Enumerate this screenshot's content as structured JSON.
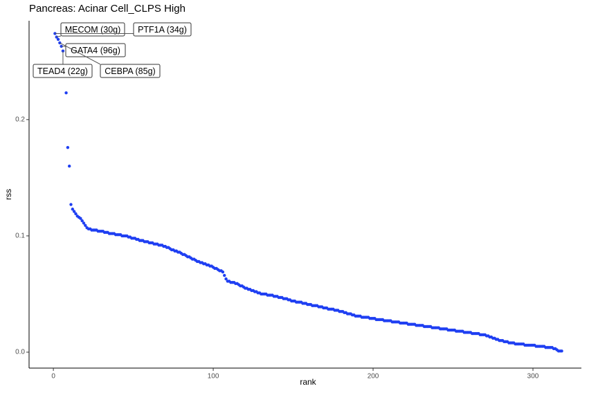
{
  "chart_data": {
    "type": "scatter",
    "title": "Pancreas: Acinar Cell_CLPS High",
    "x_label": "rank",
    "y_label": "rss",
    "color": "#1f3ff2",
    "xlim": [
      -15.2,
      330.3
    ],
    "ylim": [
      -0.0137,
      0.285
    ],
    "xticks": [
      0,
      100,
      200,
      300
    ],
    "yticks": [
      {
        "value": 0,
        "label": "0.0"
      },
      {
        "value": 0.1,
        "label": "0.1"
      },
      {
        "value": 0.2,
        "label": "0.2"
      }
    ],
    "annotations": [
      {
        "text": "MECOM (30g)",
        "rank": 2
      },
      {
        "text": "PTF1A (34g)",
        "rank": 1
      },
      {
        "text": "GATA4 (96g)",
        "rank": 5
      },
      {
        "text": "TEAD4 (22g)",
        "rank": 6
      },
      {
        "text": "CEBPA (85g)",
        "rank": 4
      }
    ],
    "x": [
      1,
      2,
      3,
      4,
      5,
      6,
      7,
      8,
      9,
      10,
      11,
      12,
      13,
      14,
      15,
      16,
      17,
      18,
      19,
      20,
      21,
      22,
      23,
      24,
      25,
      26,
      27,
      28,
      29,
      30,
      31,
      32,
      33,
      34,
      35,
      36,
      37,
      38,
      39,
      40,
      41,
      42,
      43,
      44,
      45,
      46,
      47,
      48,
      49,
      50,
      51,
      52,
      53,
      54,
      55,
      56,
      57,
      58,
      59,
      60,
      61,
      62,
      63,
      64,
      65,
      66,
      67,
      68,
      69,
      70,
      71,
      72,
      73,
      74,
      75,
      76,
      77,
      78,
      79,
      80,
      81,
      82,
      83,
      84,
      85,
      86,
      87,
      88,
      89,
      90,
      91,
      92,
      93,
      94,
      95,
      96,
      97,
      98,
      99,
      100,
      101,
      102,
      103,
      104,
      105,
      106,
      107,
      108,
      109,
      110,
      111,
      112,
      113,
      114,
      115,
      116,
      117,
      118,
      119,
      120,
      121,
      122,
      123,
      124,
      125,
      126,
      127,
      128,
      129,
      130,
      131,
      132,
      133,
      134,
      135,
      136,
      137,
      138,
      139,
      140,
      141,
      142,
      143,
      144,
      145,
      146,
      147,
      148,
      149,
      150,
      151,
      152,
      153,
      154,
      155,
      156,
      157,
      158,
      159,
      160,
      161,
      162,
      163,
      164,
      165,
      166,
      167,
      168,
      169,
      170,
      171,
      172,
      173,
      174,
      175,
      176,
      177,
      178,
      179,
      180,
      181,
      182,
      183,
      184,
      185,
      186,
      187,
      188,
      189,
      190,
      191,
      192,
      193,
      194,
      195,
      196,
      197,
      198,
      199,
      200,
      201,
      202,
      203,
      204,
      205,
      206,
      207,
      208,
      209,
      210,
      211,
      212,
      213,
      214,
      215,
      216,
      217,
      218,
      219,
      220,
      221,
      222,
      223,
      224,
      225,
      226,
      227,
      228,
      229,
      230,
      231,
      232,
      233,
      234,
      235,
      236,
      237,
      238,
      239,
      240,
      241,
      242,
      243,
      244,
      245,
      246,
      247,
      248,
      249,
      250,
      251,
      252,
      253,
      254,
      255,
      256,
      257,
      258,
      259,
      260,
      261,
      262,
      263,
      264,
      265,
      266,
      267,
      268,
      269,
      270,
      271,
      272,
      273,
      274,
      275,
      276,
      277,
      278,
      279,
      280,
      281,
      282,
      283,
      284,
      285,
      286,
      287,
      288,
      289,
      290,
      291,
      292,
      293,
      294,
      295,
      296,
      297,
      298,
      299,
      300,
      301,
      302,
      303,
      304,
      305,
      306,
      307,
      308,
      309,
      310,
      311,
      312,
      313,
      314,
      315,
      316,
      317,
      318
    ],
    "values": [
      0.274,
      0.271,
      0.269,
      0.266,
      0.263,
      0.259,
      0.238,
      0.223,
      0.176,
      0.16,
      0.127,
      0.123,
      0.121,
      0.119,
      0.117,
      0.116,
      0.115,
      0.113,
      0.111,
      0.109,
      0.107,
      0.106,
      0.106,
      0.105,
      0.105,
      0.105,
      0.105,
      0.104,
      0.104,
      0.104,
      0.104,
      0.103,
      0.103,
      0.103,
      0.102,
      0.102,
      0.102,
      0.102,
      0.101,
      0.101,
      0.101,
      0.101,
      0.1,
      0.1,
      0.1,
      0.1,
      0.099,
      0.099,
      0.098,
      0.098,
      0.098,
      0.097,
      0.097,
      0.096,
      0.096,
      0.096,
      0.095,
      0.095,
      0.095,
      0.094,
      0.094,
      0.094,
      0.093,
      0.093,
      0.093,
      0.092,
      0.092,
      0.092,
      0.091,
      0.091,
      0.09,
      0.09,
      0.089,
      0.088,
      0.088,
      0.087,
      0.087,
      0.086,
      0.086,
      0.085,
      0.084,
      0.084,
      0.083,
      0.082,
      0.082,
      0.081,
      0.08,
      0.08,
      0.079,
      0.078,
      0.078,
      0.077,
      0.077,
      0.076,
      0.076,
      0.075,
      0.075,
      0.074,
      0.074,
      0.073,
      0.072,
      0.072,
      0.071,
      0.07,
      0.07,
      0.069,
      0.066,
      0.063,
      0.061,
      0.061,
      0.06,
      0.06,
      0.06,
      0.059,
      0.059,
      0.058,
      0.057,
      0.057,
      0.056,
      0.055,
      0.055,
      0.054,
      0.054,
      0.053,
      0.053,
      0.052,
      0.052,
      0.051,
      0.051,
      0.05,
      0.05,
      0.05,
      0.05,
      0.049,
      0.049,
      0.049,
      0.049,
      0.048,
      0.048,
      0.048,
      0.047,
      0.047,
      0.047,
      0.046,
      0.046,
      0.046,
      0.045,
      0.045,
      0.044,
      0.044,
      0.044,
      0.043,
      0.043,
      0.043,
      0.043,
      0.042,
      0.042,
      0.042,
      0.041,
      0.041,
      0.041,
      0.04,
      0.04,
      0.04,
      0.04,
      0.039,
      0.039,
      0.039,
      0.038,
      0.038,
      0.038,
      0.037,
      0.037,
      0.037,
      0.037,
      0.036,
      0.036,
      0.036,
      0.035,
      0.035,
      0.035,
      0.034,
      0.034,
      0.033,
      0.033,
      0.033,
      0.032,
      0.032,
      0.031,
      0.031,
      0.031,
      0.031,
      0.03,
      0.03,
      0.03,
      0.03,
      0.03,
      0.029,
      0.029,
      0.029,
      0.029,
      0.028,
      0.028,
      0.028,
      0.028,
      0.028,
      0.027,
      0.027,
      0.027,
      0.027,
      0.027,
      0.026,
      0.026,
      0.026,
      0.026,
      0.026,
      0.025,
      0.025,
      0.025,
      0.025,
      0.025,
      0.024,
      0.024,
      0.024,
      0.024,
      0.024,
      0.023,
      0.023,
      0.023,
      0.023,
      0.023,
      0.022,
      0.022,
      0.022,
      0.022,
      0.022,
      0.021,
      0.021,
      0.021,
      0.021,
      0.021,
      0.02,
      0.02,
      0.02,
      0.02,
      0.02,
      0.019,
      0.019,
      0.019,
      0.019,
      0.019,
      0.018,
      0.018,
      0.018,
      0.018,
      0.018,
      0.017,
      0.017,
      0.017,
      0.017,
      0.017,
      0.016,
      0.016,
      0.016,
      0.016,
      0.016,
      0.015,
      0.015,
      0.015,
      0.015,
      0.014,
      0.014,
      0.013,
      0.013,
      0.012,
      0.012,
      0.011,
      0.011,
      0.01,
      0.01,
      0.01,
      0.009,
      0.009,
      0.009,
      0.008,
      0.008,
      0.008,
      0.008,
      0.007,
      0.007,
      0.007,
      0.007,
      0.007,
      0.007,
      0.006,
      0.006,
      0.006,
      0.006,
      0.006,
      0.006,
      0.006,
      0.005,
      0.005,
      0.005,
      0.005,
      0.005,
      0.005,
      0.004,
      0.004,
      0.004,
      0.004,
      0.004,
      0.003,
      0.003,
      0.002,
      0.001,
      0.001,
      0.001
    ]
  }
}
